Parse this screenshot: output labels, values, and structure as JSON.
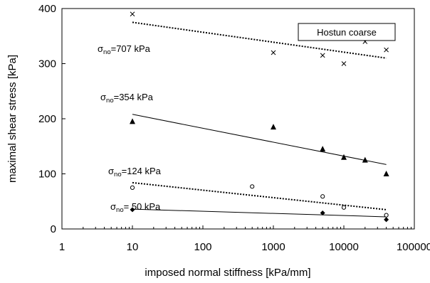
{
  "chart_data": {
    "type": "scatter",
    "xlabel": "imposed normal stiffness [kPa/mm]",
    "ylabel": "maximal shear stress [kPa]",
    "xscale": "log",
    "xlim": [
      1,
      100000
    ],
    "ylim": [
      0,
      400
    ],
    "x_ticks": [
      1,
      10,
      100,
      1000,
      10000,
      100000
    ],
    "x_tick_labels": [
      "1",
      "10",
      "100",
      "1000",
      "10000",
      "100000"
    ],
    "y_ticks": [
      0,
      100,
      200,
      300,
      400
    ],
    "y_tick_labels": [
      "0",
      "100",
      "200",
      "300",
      "400"
    ],
    "grid": false,
    "legend": {
      "text": "Hostun coarse",
      "placement": "top-right"
    },
    "series": [
      {
        "marker": "x",
        "annotation": {
          "main": "σ",
          "sub": "no",
          "rest": "=707 kPa"
        },
        "points": [
          {
            "x": 10,
            "y": 390
          },
          {
            "x": 1000,
            "y": 320
          },
          {
            "x": 5000,
            "y": 315
          },
          {
            "x": 10000,
            "y": 300
          },
          {
            "x": 20000,
            "y": 340
          },
          {
            "x": 40000,
            "y": 325
          }
        ],
        "trend": {
          "style": "dotted",
          "from": {
            "x": 10,
            "y": 375
          },
          "to": {
            "x": 40000,
            "y": 310
          }
        }
      },
      {
        "marker": "triangle",
        "annotation": {
          "main": "σ",
          "sub": "no",
          "rest": "=354 kPa"
        },
        "points": [
          {
            "x": 10,
            "y": 195
          },
          {
            "x": 1000,
            "y": 185
          },
          {
            "x": 5000,
            "y": 145
          },
          {
            "x": 10000,
            "y": 130
          },
          {
            "x": 20000,
            "y": 125
          },
          {
            "x": 40000,
            "y": 100
          }
        ],
        "trend": {
          "style": "solid",
          "from": {
            "x": 10,
            "y": 208
          },
          "to": {
            "x": 40000,
            "y": 117
          }
        }
      },
      {
        "marker": "circle",
        "annotation": {
          "main": "σ",
          "sub": "no",
          "rest": "=124 kPa"
        },
        "points": [
          {
            "x": 10,
            "y": 75
          },
          {
            "x": 500,
            "y": 77
          },
          {
            "x": 5000,
            "y": 59
          },
          {
            "x": 10000,
            "y": 39
          },
          {
            "x": 40000,
            "y": 25
          }
        ],
        "trend": {
          "style": "dotted",
          "from": {
            "x": 10,
            "y": 84
          },
          "to": {
            "x": 40000,
            "y": 35
          }
        }
      },
      {
        "marker": "diamond",
        "annotation": {
          "main": "σ",
          "sub": "no",
          "rest": "= 50 kPa"
        },
        "points": [
          {
            "x": 10,
            "y": 35
          },
          {
            "x": 5000,
            "y": 29
          },
          {
            "x": 40000,
            "y": 17
          }
        ],
        "trend": {
          "style": "solid",
          "from": {
            "x": 10,
            "y": 36
          },
          "to": {
            "x": 40000,
            "y": 22
          }
        }
      }
    ]
  }
}
